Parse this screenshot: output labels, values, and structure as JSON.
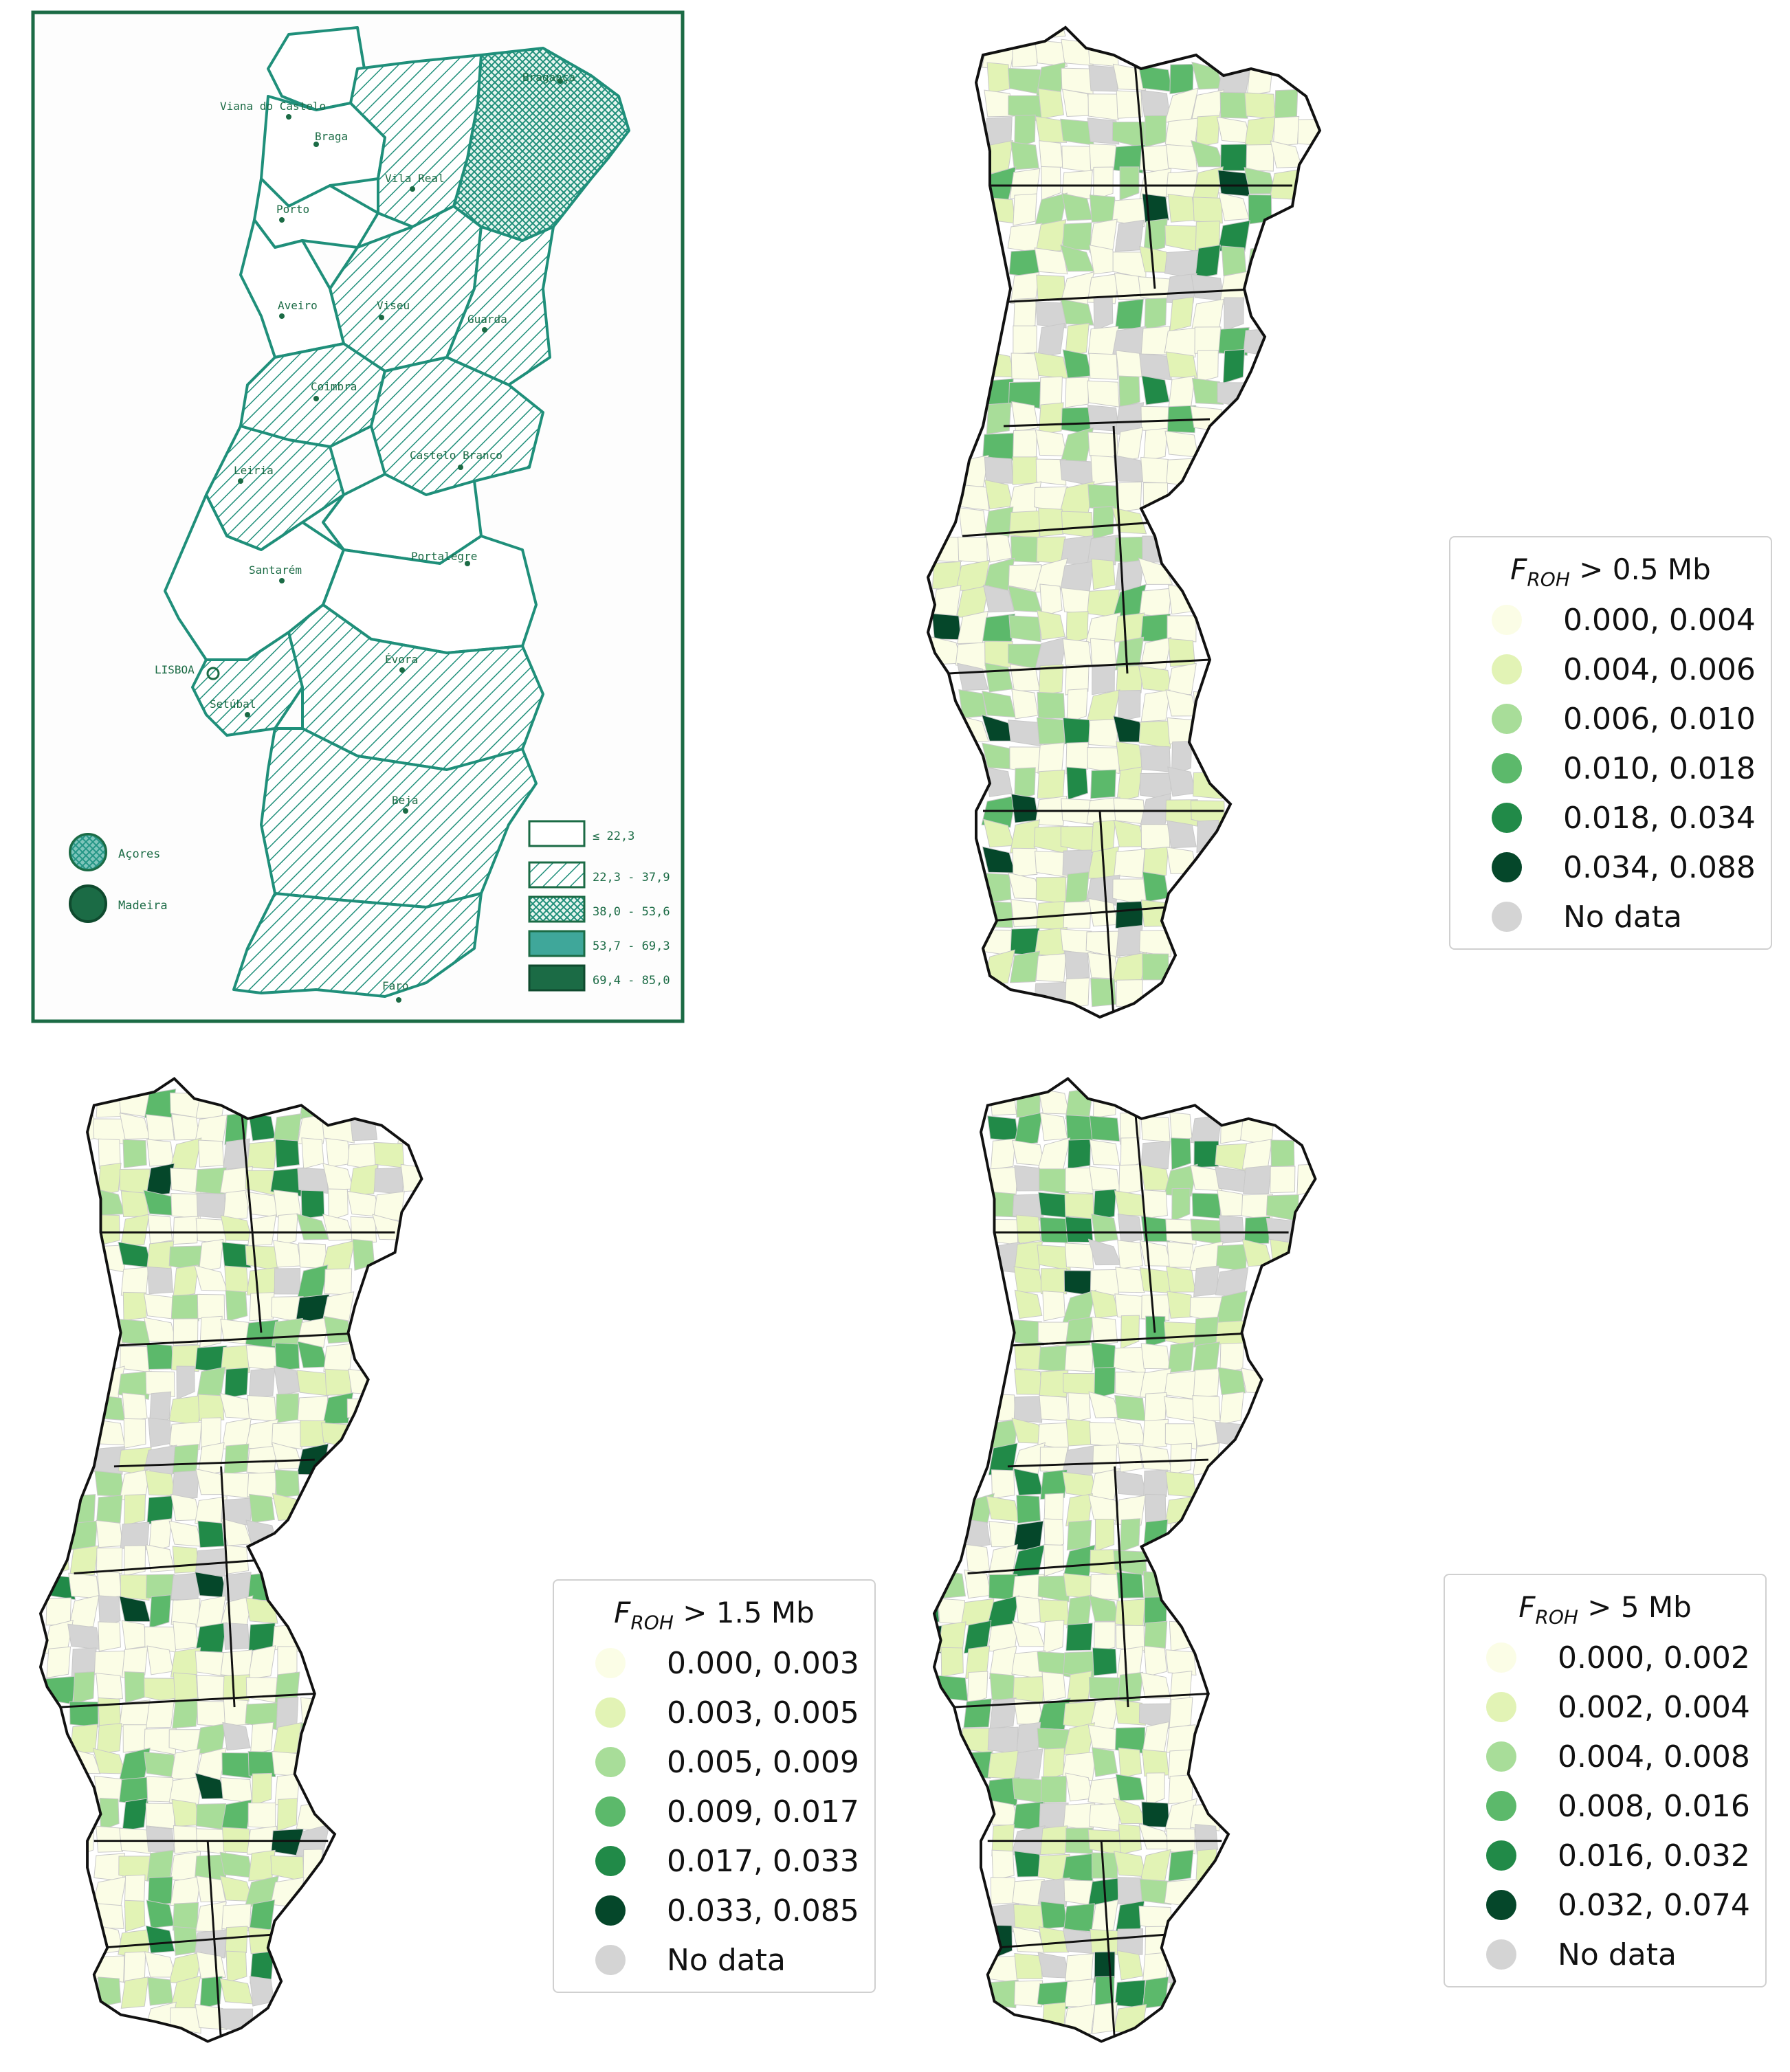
{
  "historical_map": {
    "cities": [
      {
        "name": "Viana do Castelo"
      },
      {
        "name": "Bragança"
      },
      {
        "name": "Braga"
      },
      {
        "name": "Vila Real"
      },
      {
        "name": "Porto"
      },
      {
        "name": "Aveiro"
      },
      {
        "name": "Viseu"
      },
      {
        "name": "Guarda"
      },
      {
        "name": "Coimbra"
      },
      {
        "name": "Castelo Branco"
      },
      {
        "name": "Leiria"
      },
      {
        "name": "Santarém"
      },
      {
        "name": "Portalegre"
      },
      {
        "name": "LISBOA"
      },
      {
        "name": "Setúbal"
      },
      {
        "name": "Évora"
      },
      {
        "name": "Beja"
      },
      {
        "name": "Faro"
      }
    ],
    "islands": [
      {
        "name": "Açores",
        "color": "#2a9d8f"
      },
      {
        "name": "Madeira",
        "color": "#1b6b45"
      }
    ],
    "legend": [
      {
        "label": "≤ 22,3",
        "pattern": "blank"
      },
      {
        "label": "22,3 - 37,9",
        "pattern": "hatch"
      },
      {
        "label": "38,0 - 53,6",
        "pattern": "cross"
      },
      {
        "label": "53,7 - 69,3",
        "pattern": "teal"
      },
      {
        "label": "69,4 - 85,0",
        "pattern": "dark"
      }
    ]
  },
  "maps": [
    {
      "id": "map1",
      "legend_title_main": "F",
      "legend_title_sub": "ROH",
      "legend_title_rest": " > 0.5 Mb",
      "items": [
        {
          "label": "0.000, 0.004",
          "color": "#fbfde6"
        },
        {
          "label": "0.004, 0.006",
          "color": "#e2f3b5"
        },
        {
          "label": "0.006, 0.010",
          "color": "#a8dd99"
        },
        {
          "label": "0.010, 0.018",
          "color": "#5cb96b"
        },
        {
          "label": "0.018, 0.034",
          "color": "#218a48"
        },
        {
          "label": "0.034, 0.088",
          "color": "#05472a"
        },
        {
          "label": "No data",
          "color": "#d4d4d4"
        }
      ]
    },
    {
      "id": "map2",
      "legend_title_main": "F",
      "legend_title_sub": "ROH",
      "legend_title_rest": " > 1.5 Mb",
      "items": [
        {
          "label": "0.000, 0.003",
          "color": "#fbfde6"
        },
        {
          "label": "0.003, 0.005",
          "color": "#e2f3b5"
        },
        {
          "label": "0.005, 0.009",
          "color": "#a8dd99"
        },
        {
          "label": "0.009, 0.017",
          "color": "#5cb96b"
        },
        {
          "label": "0.017, 0.033",
          "color": "#218a48"
        },
        {
          "label": "0.033, 0.085",
          "color": "#05472a"
        },
        {
          "label": "No data",
          "color": "#d4d4d4"
        }
      ]
    },
    {
      "id": "map3",
      "legend_title_main": "F",
      "legend_title_sub": "ROH",
      "legend_title_rest": " > 5 Mb",
      "items": [
        {
          "label": "0.000, 0.002",
          "color": "#fbfde6"
        },
        {
          "label": "0.002, 0.004",
          "color": "#e2f3b5"
        },
        {
          "label": "0.004, 0.008",
          "color": "#a8dd99"
        },
        {
          "label": "0.008, 0.016",
          "color": "#5cb96b"
        },
        {
          "label": "0.016, 0.032",
          "color": "#218a48"
        },
        {
          "label": "0.032, 0.074",
          "color": "#05472a"
        },
        {
          "label": "No data",
          "color": "#d4d4d4"
        }
      ]
    }
  ]
}
